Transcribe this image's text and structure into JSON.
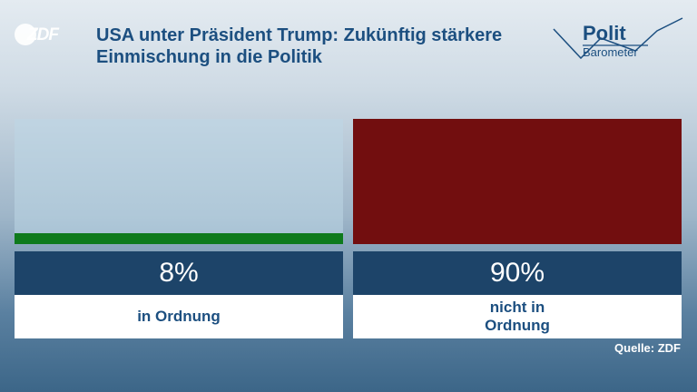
{
  "logo": {
    "text": "ZDF"
  },
  "title": "USA unter Präsident Trump: Zukünftig stärkere Einmischung in die Politik",
  "brand": {
    "line1": "Polit",
    "line2": "Barometer"
  },
  "chart_data": {
    "type": "bar",
    "categories": [
      "in Ordnung",
      "nicht in Ordnung"
    ],
    "values": [
      8,
      90
    ],
    "value_labels": [
      "8%",
      "90%"
    ],
    "colors": [
      "#0e7a1c",
      "#720e0f"
    ],
    "ylim": [
      0,
      90
    ],
    "grid": false
  },
  "source": "Quelle: ZDF"
}
